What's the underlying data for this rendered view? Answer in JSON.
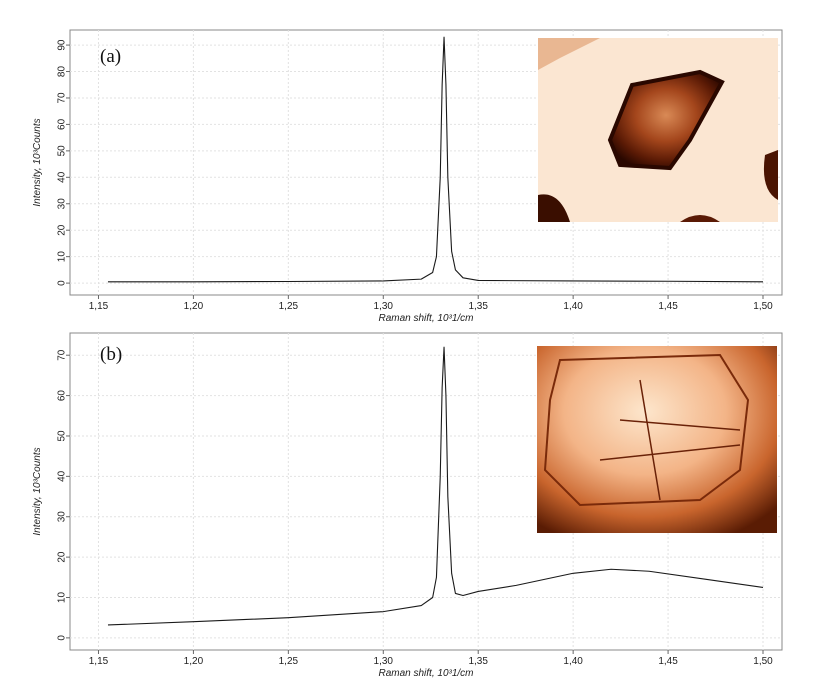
{
  "chart_data": [
    {
      "type": "line",
      "panel_label": "(a)",
      "x_label": "Raman shift, 10³1/cm",
      "y_label": "Intensity, 10³Counts",
      "color": "#1a1a1a",
      "grid": true,
      "x": [
        1.155,
        1.2,
        1.25,
        1.3,
        1.32,
        1.326,
        1.328,
        1.33,
        1.331,
        1.332,
        1.333,
        1.334,
        1.336,
        1.338,
        1.342,
        1.35,
        1.4,
        1.45,
        1.5
      ],
      "values": [
        0.5,
        0.5,
        0.6,
        0.8,
        1.5,
        4,
        10,
        40,
        75,
        93,
        75,
        40,
        12,
        5,
        2,
        1,
        0.8,
        0.7,
        0.5
      ],
      "xlim": [
        1.135,
        1.51
      ],
      "ylim": [
        -4.5,
        95.7
      ],
      "xticks": [
        {
          "value": 1.15,
          "label": "1,15"
        },
        {
          "value": 1.2,
          "label": "1,20"
        },
        {
          "value": 1.25,
          "label": "1,25"
        },
        {
          "value": 1.3,
          "label": "1,30"
        },
        {
          "value": 1.35,
          "label": "1,35"
        },
        {
          "value": 1.4,
          "label": "1,40"
        },
        {
          "value": 1.45,
          "label": "1,45"
        },
        {
          "value": 1.5,
          "label": "1,50"
        }
      ],
      "yticks": [
        0,
        10,
        20,
        30,
        40,
        50,
        60,
        70,
        80,
        90
      ]
    },
    {
      "type": "line",
      "panel_label": "(b)",
      "x_label": "Raman shift, 10³1/cm",
      "y_label": "Intensity, 10³Counts",
      "color": "#1a1a1a",
      "grid": true,
      "x": [
        1.155,
        1.2,
        1.25,
        1.3,
        1.32,
        1.326,
        1.328,
        1.33,
        1.331,
        1.332,
        1.333,
        1.334,
        1.336,
        1.338,
        1.342,
        1.35,
        1.37,
        1.4,
        1.42,
        1.44,
        1.47,
        1.5
      ],
      "values": [
        3.2,
        4,
        5,
        6.5,
        8,
        10,
        15,
        40,
        62,
        72,
        60,
        35,
        16,
        11,
        10.5,
        11.5,
        13,
        16,
        17,
        16.5,
        14.5,
        12.5
      ],
      "xlim": [
        1.135,
        1.51
      ],
      "ylim": [
        -3,
        75.5
      ],
      "xticks": [
        {
          "value": 1.15,
          "label": "1,15"
        },
        {
          "value": 1.2,
          "label": "1,20"
        },
        {
          "value": 1.25,
          "label": "1,25"
        },
        {
          "value": 1.3,
          "label": "1,30"
        },
        {
          "value": 1.35,
          "label": "1,35"
        },
        {
          "value": 1.4,
          "label": "1,40"
        },
        {
          "value": 1.45,
          "label": "1,45"
        },
        {
          "value": 1.5,
          "label": "1,50"
        }
      ],
      "yticks": [
        0,
        10,
        20,
        30,
        40,
        50,
        60,
        70
      ]
    }
  ]
}
